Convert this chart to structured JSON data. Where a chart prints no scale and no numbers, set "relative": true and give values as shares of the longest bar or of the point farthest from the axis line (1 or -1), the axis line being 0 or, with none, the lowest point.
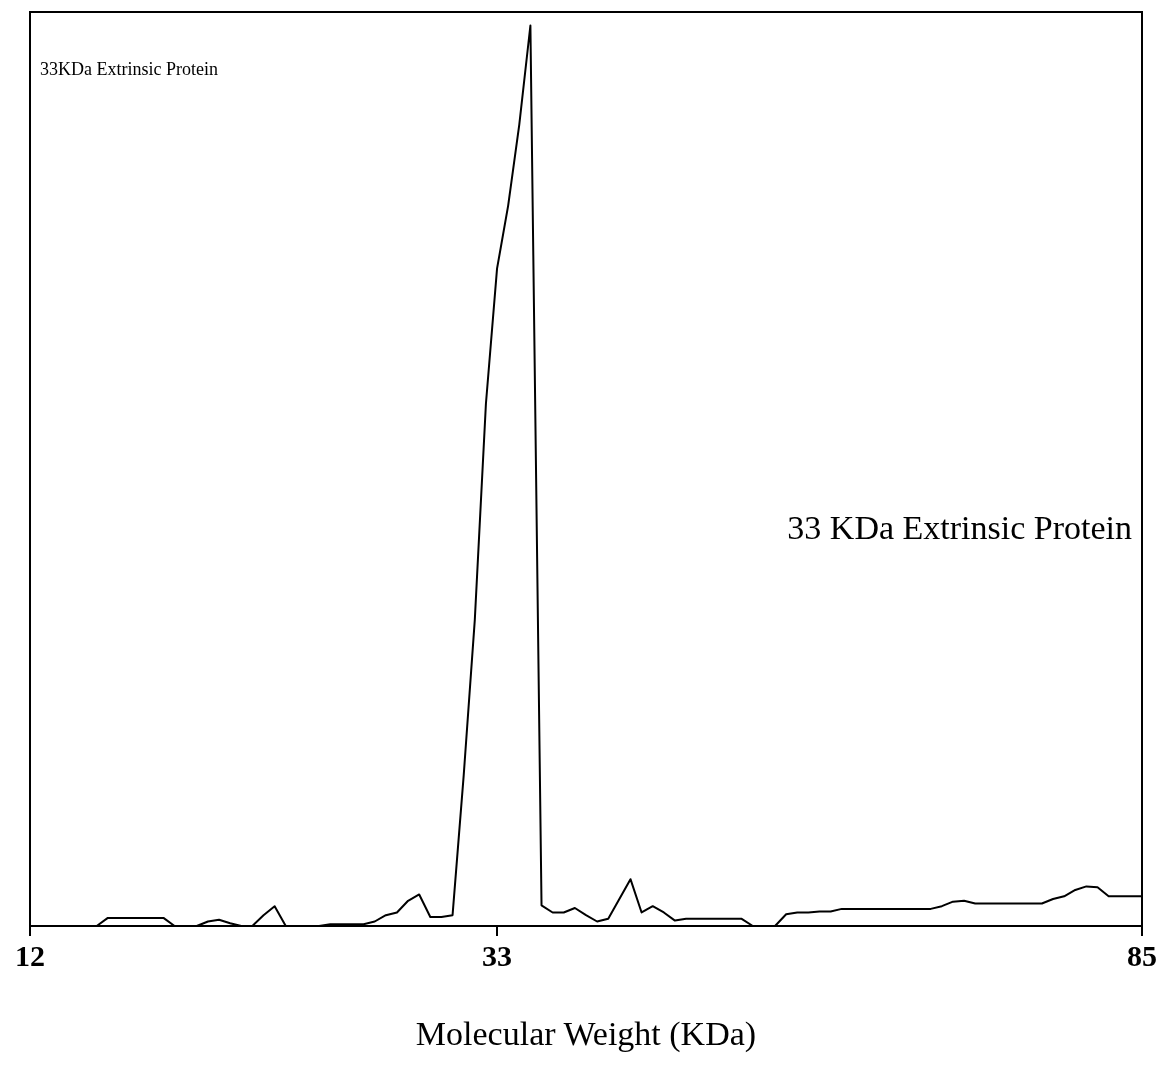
{
  "chart_data": {
    "type": "line",
    "relative": true,
    "xlabel": "Molecular Weight (KDa)",
    "tick_labels": "x",
    "marker": "none",
    "grid": false,
    "annotations": [
      "33KDa Extrinsic Protein",
      "33 KDa Extrinsic Protein"
    ],
    "categories": [
      "12",
      null,
      null,
      null,
      null,
      null,
      null,
      null,
      null,
      null,
      null,
      null,
      null,
      null,
      null,
      null,
      null,
      null,
      null,
      null,
      null,
      null,
      null,
      null,
      null,
      null,
      null,
      null,
      null,
      null,
      null,
      null,
      null,
      null,
      null,
      null,
      null,
      null,
      null,
      null,
      null,
      null,
      "33",
      null,
      null,
      null,
      null,
      null,
      null,
      null,
      null,
      null,
      null,
      null,
      null,
      null,
      null,
      null,
      null,
      null,
      null,
      null,
      null,
      null,
      null,
      null,
      null,
      null,
      null,
      null,
      null,
      null,
      null,
      null,
      null,
      null,
      null,
      null,
      null,
      null,
      null,
      null,
      null,
      null,
      null,
      null,
      null,
      null,
      null,
      null,
      null,
      null,
      null,
      null,
      null,
      null,
      null,
      null,
      null,
      null,
      "85"
    ],
    "series": [
      {
        "color": "#000000",
        "values": [
          0,
          0,
          0,
          0,
          0,
          0,
          0,
          0.009,
          0.009,
          0.009,
          0.009,
          0.009,
          0.009,
          0,
          0,
          0,
          0.005,
          0.007,
          0.003,
          0,
          0,
          0.012,
          0.022,
          0,
          0,
          0,
          0,
          0.002,
          0.002,
          0.002,
          0.002,
          0.005,
          0.012,
          0.015,
          0.028,
          0.035,
          0.01,
          0.01,
          0.012,
          0.167,
          0.34,
          0.58,
          0.73,
          0.8,
          0.89,
          1,
          0.023,
          0.015,
          0.015,
          0.02,
          0.012,
          0.005,
          0.008,
          0.03,
          0.052,
          0.015,
          0.022,
          0.015,
          0.006,
          0.008,
          0.008,
          0.008,
          0.008,
          0.008,
          0.008,
          0,
          0,
          0,
          0.013,
          0.015,
          0.015,
          0.016,
          0.016,
          0.019,
          0.019,
          0.019,
          0.019,
          0.019,
          0.019,
          0.019,
          0.019,
          0.019,
          0.022,
          0.027,
          0.028,
          0.025,
          0.025,
          0.025,
          0.025,
          0.025,
          0.025,
          0.025,
          0.03,
          0.033,
          0.04,
          0.044,
          0.043,
          0.033,
          0.033,
          0.033,
          0.033
        ]
      }
    ]
  }
}
